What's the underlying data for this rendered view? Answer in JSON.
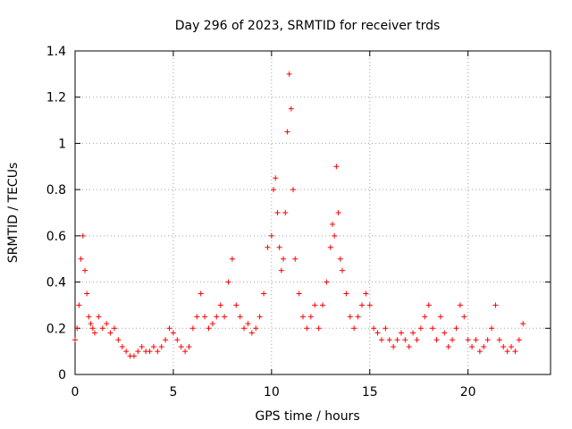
{
  "chart_data": {
    "type": "scatter",
    "title": "Day 296 of 2023, SRMTID for receiver trds",
    "xlabel": "GPS time / hours",
    "ylabel": "SRMTID / TECUs",
    "xlim": [
      0,
      24.2
    ],
    "ylim": [
      0,
      1.4
    ],
    "xticks": [
      0,
      5,
      10,
      15,
      20
    ],
    "xtick_labels": [
      "0",
      "5",
      "10",
      "15",
      "20"
    ],
    "yticks": [
      0,
      0.2,
      0.4,
      0.6,
      0.8,
      1.0,
      1.2,
      1.4
    ],
    "ytick_labels": [
      "0",
      "0.2",
      "0.4",
      "0.6",
      "0.8",
      "1",
      "1.2",
      "1.4"
    ],
    "grid": true,
    "marker": "+",
    "color": "#ff0000",
    "series": [
      {
        "name": "SRMTID",
        "x": [
          0.0,
          0.1,
          0.2,
          0.3,
          0.4,
          0.5,
          0.6,
          0.7,
          0.8,
          0.9,
          1.0,
          1.2,
          1.4,
          1.6,
          1.8,
          2.0,
          2.2,
          2.4,
          2.6,
          2.8,
          3.0,
          3.2,
          3.4,
          3.6,
          3.8,
          4.0,
          4.2,
          4.4,
          4.6,
          4.8,
          5.0,
          5.2,
          5.4,
          5.6,
          5.8,
          6.0,
          6.2,
          6.4,
          6.6,
          6.8,
          7.0,
          7.2,
          7.4,
          7.6,
          7.8,
          8.0,
          8.2,
          8.4,
          8.6,
          8.8,
          9.0,
          9.2,
          9.4,
          9.6,
          9.8,
          10.0,
          10.1,
          10.2,
          10.3,
          10.4,
          10.5,
          10.6,
          10.7,
          10.8,
          10.9,
          11.0,
          11.1,
          11.2,
          11.4,
          11.6,
          11.8,
          12.0,
          12.2,
          12.4,
          12.6,
          12.8,
          13.0,
          13.1,
          13.2,
          13.3,
          13.4,
          13.5,
          13.6,
          13.8,
          14.0,
          14.2,
          14.4,
          14.6,
          14.8,
          15.0,
          15.2,
          15.4,
          15.6,
          15.8,
          16.0,
          16.2,
          16.4,
          16.6,
          16.8,
          17.0,
          17.2,
          17.4,
          17.6,
          17.8,
          18.0,
          18.2,
          18.4,
          18.6,
          18.8,
          19.0,
          19.2,
          19.4,
          19.6,
          19.8,
          20.0,
          20.2,
          20.4,
          20.6,
          20.8,
          21.0,
          21.2,
          21.4,
          21.6,
          21.8,
          22.0,
          22.2,
          22.4,
          22.6,
          22.8
        ],
        "y": [
          0.15,
          0.2,
          0.3,
          0.5,
          0.6,
          0.45,
          0.35,
          0.25,
          0.22,
          0.2,
          0.18,
          0.25,
          0.2,
          0.22,
          0.18,
          0.2,
          0.15,
          0.12,
          0.1,
          0.08,
          0.08,
          0.1,
          0.12,
          0.1,
          0.1,
          0.12,
          0.1,
          0.12,
          0.15,
          0.2,
          0.18,
          0.15,
          0.12,
          0.1,
          0.12,
          0.2,
          0.25,
          0.35,
          0.25,
          0.2,
          0.22,
          0.25,
          0.3,
          0.25,
          0.4,
          0.5,
          0.3,
          0.25,
          0.2,
          0.22,
          0.18,
          0.2,
          0.25,
          0.35,
          0.55,
          0.6,
          0.8,
          0.85,
          0.7,
          0.55,
          0.45,
          0.5,
          0.7,
          1.05,
          1.3,
          1.15,
          0.8,
          0.5,
          0.35,
          0.25,
          0.2,
          0.25,
          0.3,
          0.2,
          0.3,
          0.4,
          0.55,
          0.65,
          0.6,
          0.9,
          0.7,
          0.5,
          0.45,
          0.35,
          0.25,
          0.2,
          0.25,
          0.3,
          0.35,
          0.3,
          0.2,
          0.18,
          0.15,
          0.2,
          0.15,
          0.12,
          0.15,
          0.18,
          0.15,
          0.12,
          0.18,
          0.15,
          0.2,
          0.25,
          0.3,
          0.2,
          0.15,
          0.25,
          0.18,
          0.12,
          0.15,
          0.2,
          0.3,
          0.25,
          0.15,
          0.12,
          0.15,
          0.1,
          0.12,
          0.15,
          0.2,
          0.3,
          0.15,
          0.12,
          0.1,
          0.12,
          0.1,
          0.15,
          0.22
        ]
      }
    ]
  }
}
